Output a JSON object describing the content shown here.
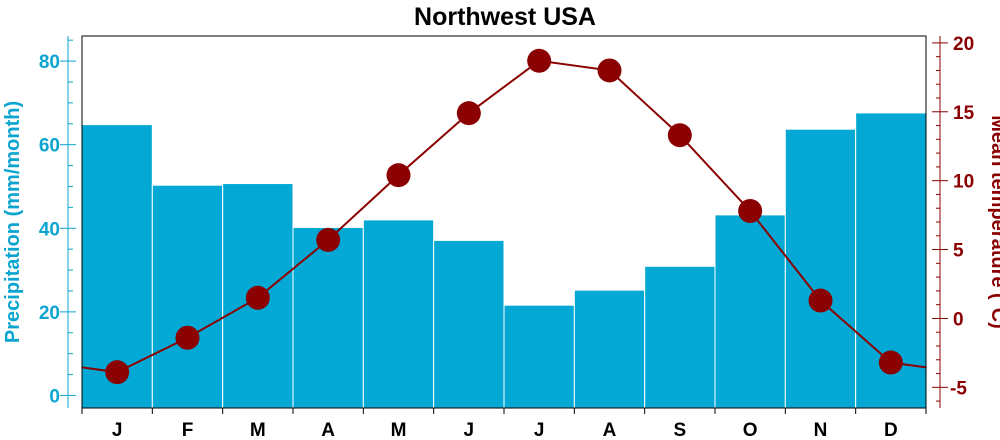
{
  "chart_data": {
    "type": "bar+line",
    "title": "Northwest USA",
    "categories": [
      "J",
      "F",
      "M",
      "A",
      "M",
      "J",
      "J",
      "A",
      "S",
      "O",
      "N",
      "D"
    ],
    "ylabel_left": "Precipitation (mm/month)",
    "ylabel_right": "Mean temperature (°C)",
    "ylim_left": [
      -3,
      86
    ],
    "ylim_right": [
      -6.5,
      20.5
    ],
    "yticks_left": [
      0,
      20,
      40,
      60,
      80
    ],
    "yticks_right": [
      -5,
      0,
      5,
      10,
      15,
      20
    ],
    "series": [
      {
        "axis": "left",
        "kind": "bar",
        "values": [
          64.8,
          50.3,
          50.7,
          40.2,
          42.0,
          37.1,
          21.6,
          25.2,
          30.9,
          43.2,
          63.7,
          67.6
        ],
        "color": "#04a8d4"
      },
      {
        "axis": "right",
        "kind": "line",
        "values": [
          -3.9,
          -1.4,
          1.5,
          5.7,
          10.4,
          14.9,
          18.7,
          18.0,
          13.3,
          7.8,
          1.3,
          -3.2
        ],
        "color": "#8b0000"
      }
    ],
    "grid": false,
    "legend": "none"
  }
}
